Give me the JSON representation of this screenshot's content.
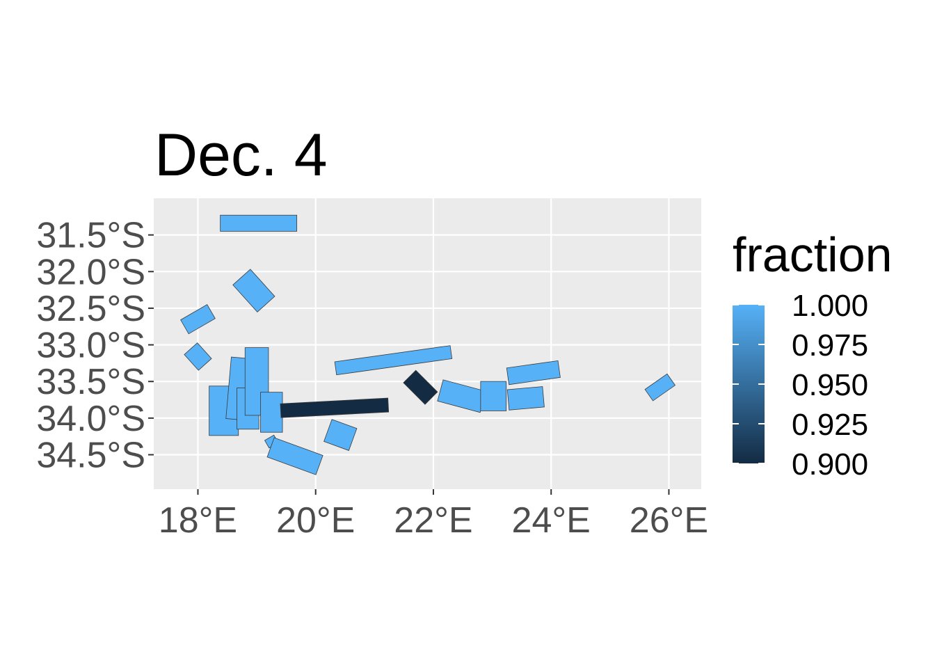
{
  "chart_data": {
    "type": "map",
    "title": "Dec. 4",
    "x_ticks": [
      {
        "value": 18,
        "label": "18°E"
      },
      {
        "value": 20,
        "label": "20°E"
      },
      {
        "value": 22,
        "label": "22°E"
      },
      {
        "value": 24,
        "label": "24°E"
      },
      {
        "value": 26,
        "label": "26°E"
      }
    ],
    "y_ticks": [
      {
        "value": -31.5,
        "label": "31.5°S"
      },
      {
        "value": -32.0,
        "label": "32.0°S"
      },
      {
        "value": -32.5,
        "label": "32.5°S"
      },
      {
        "value": -33.0,
        "label": "33.0°S"
      },
      {
        "value": -33.5,
        "label": "33.5°S"
      },
      {
        "value": -34.0,
        "label": "34.0°S"
      },
      {
        "value": -34.5,
        "label": "34.5°S"
      }
    ],
    "xlim": [
      17.25,
      26.55
    ],
    "ylim": [
      -34.97,
      -31.0
    ],
    "grid": true,
    "panel_background": "#ebebeb",
    "legend": {
      "title": "fraction",
      "position": "right",
      "range": [
        0.9,
        1.0
      ],
      "low_color": "#132b43",
      "high_color": "#56b1f7",
      "breaks": [
        {
          "value": 1.0,
          "label": "1.000"
        },
        {
          "value": 0.975,
          "label": "0.975"
        },
        {
          "value": 0.95,
          "label": "0.950"
        },
        {
          "value": 0.925,
          "label": "0.925"
        },
        {
          "value": 0.9,
          "label": "0.900"
        }
      ]
    },
    "regions": [
      {
        "lon": 19.03,
        "lat": -31.34,
        "length": 1.3,
        "width": 0.22,
        "angle": 0.0,
        "fraction": 1.0
      },
      {
        "lon": 18.95,
        "lat": -32.26,
        "length": 0.62,
        "width": 0.32,
        "angle": 48.0,
        "fraction": 1.0
      },
      {
        "lon": 18.0,
        "lat": -32.65,
        "length": 0.52,
        "width": 0.22,
        "angle": -30.0,
        "fraction": 1.0
      },
      {
        "lon": 18.0,
        "lat": -33.16,
        "length": 0.36,
        "width": 0.24,
        "angle": 48.0,
        "fraction": 1.0
      },
      {
        "lon": 18.44,
        "lat": -33.9,
        "length": 0.84,
        "width": 0.4,
        "angle": 90.0,
        "fraction": 1.0
      },
      {
        "lon": 18.72,
        "lat": -33.6,
        "length": 1.05,
        "width": 0.32,
        "angle": 95.0,
        "fraction": 1.0
      },
      {
        "lon": 18.85,
        "lat": -33.87,
        "length": 0.7,
        "width": 0.3,
        "angle": 90.0,
        "fraction": 1.0
      },
      {
        "lon": 19.0,
        "lat": -33.5,
        "length": 1.15,
        "width": 0.32,
        "angle": 90.0,
        "fraction": 1.0
      },
      {
        "lon": 19.25,
        "lat": -33.92,
        "length": 0.68,
        "width": 0.3,
        "angle": 90.0,
        "fraction": 1.0
      },
      {
        "lon": 19.25,
        "lat": -34.32,
        "length": 0.18,
        "width": 0.12,
        "angle": -30.0,
        "fraction": 1.0
      },
      {
        "lon": 20.32,
        "lat": -33.86,
        "length": 1.83,
        "width": 0.19,
        "angle": -3.0,
        "fraction": 0.9
      },
      {
        "lon": 19.65,
        "lat": -34.52,
        "length": 0.88,
        "width": 0.28,
        "angle": 20.0,
        "fraction": 1.0
      },
      {
        "lon": 20.42,
        "lat": -34.23,
        "length": 0.45,
        "width": 0.32,
        "angle": 20.0,
        "fraction": 1.0
      },
      {
        "lon": 21.32,
        "lat": -33.21,
        "length": 1.98,
        "width": 0.18,
        "angle": -8.0,
        "fraction": 1.0
      },
      {
        "lon": 21.78,
        "lat": -33.58,
        "length": 0.52,
        "width": 0.24,
        "angle": 45.0,
        "fraction": 0.9
      },
      {
        "lon": 22.48,
        "lat": -33.7,
        "length": 0.75,
        "width": 0.3,
        "angle": 15.0,
        "fraction": 1.0
      },
      {
        "lon": 23.02,
        "lat": -33.7,
        "length": 0.5,
        "width": 0.35,
        "angle": 90.0,
        "fraction": 1.0
      },
      {
        "lon": 23.7,
        "lat": -33.38,
        "length": 0.88,
        "width": 0.23,
        "angle": -8.0,
        "fraction": 1.0
      },
      {
        "lon": 23.57,
        "lat": -33.73,
        "length": 0.6,
        "width": 0.28,
        "angle": -5.0,
        "fraction": 1.0
      },
      {
        "lon": 25.85,
        "lat": -33.58,
        "length": 0.46,
        "width": 0.19,
        "angle": -35.0,
        "fraction": 1.0
      }
    ]
  }
}
